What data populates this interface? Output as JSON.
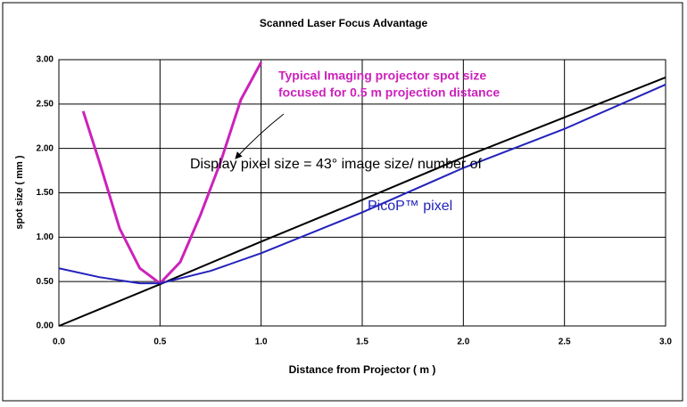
{
  "chart_data": {
    "type": "line",
    "title": "Scanned Laser Focus Advantage",
    "x_label": "Distance from Projector ( m )",
    "y_label": "spot size ( mm )",
    "annotations": [
      "Typical Imaging projector spot size",
      "focused for 0.5 m projection distance",
      "Display pixel size = 43° image size/ number of",
      "PicoP™ pixel"
    ],
    "series": [
      {
        "color": "#cc22bb",
        "x": [
          0.12,
          0.2,
          0.3,
          0.4,
          0.5,
          0.6,
          0.7,
          0.8,
          0.9,
          1.0
        ],
        "values": [
          2.42,
          1.85,
          1.1,
          0.65,
          0.48,
          0.72,
          1.25,
          1.85,
          2.55,
          2.97
        ]
      },
      {
        "color": "#000000",
        "x": [
          0,
          0.5,
          1,
          1.5,
          2,
          2.5,
          3
        ],
        "values": [
          0,
          0.47,
          0.95,
          1.42,
          1.9,
          2.35,
          2.8
        ]
      },
      {
        "color": "#2222bb",
        "x": [
          0,
          0.2,
          0.4,
          0.5,
          0.75,
          1,
          1.5,
          2,
          2.5,
          3
        ],
        "values": [
          0.65,
          0.55,
          0.48,
          0.48,
          0.62,
          0.82,
          1.28,
          1.78,
          2.22,
          2.72
        ]
      }
    ],
    "xlim": [
      0,
      3
    ],
    "ylim": [
      0,
      3
    ],
    "xticks": [
      {
        "value": 0,
        "label": "0.0"
      },
      0.5,
      {
        "value": 1,
        "label": "1.0"
      },
      1.5,
      {
        "value": 2,
        "label": "2.0"
      },
      2.5,
      {
        "value": 3,
        "label": "3.0"
      }
    ],
    "yticks": [
      {
        "value": 0,
        "label": "0.00"
      },
      {
        "value": 0.5,
        "label": "0.50"
      },
      {
        "value": 1,
        "label": "1.00"
      },
      {
        "value": 1.5,
        "label": "1.50"
      },
      {
        "value": 2,
        "label": "2.00"
      },
      {
        "value": 2.5,
        "label": "2.50"
      },
      {
        "value": 3,
        "label": "3.00"
      }
    ],
    "grid": true
  }
}
